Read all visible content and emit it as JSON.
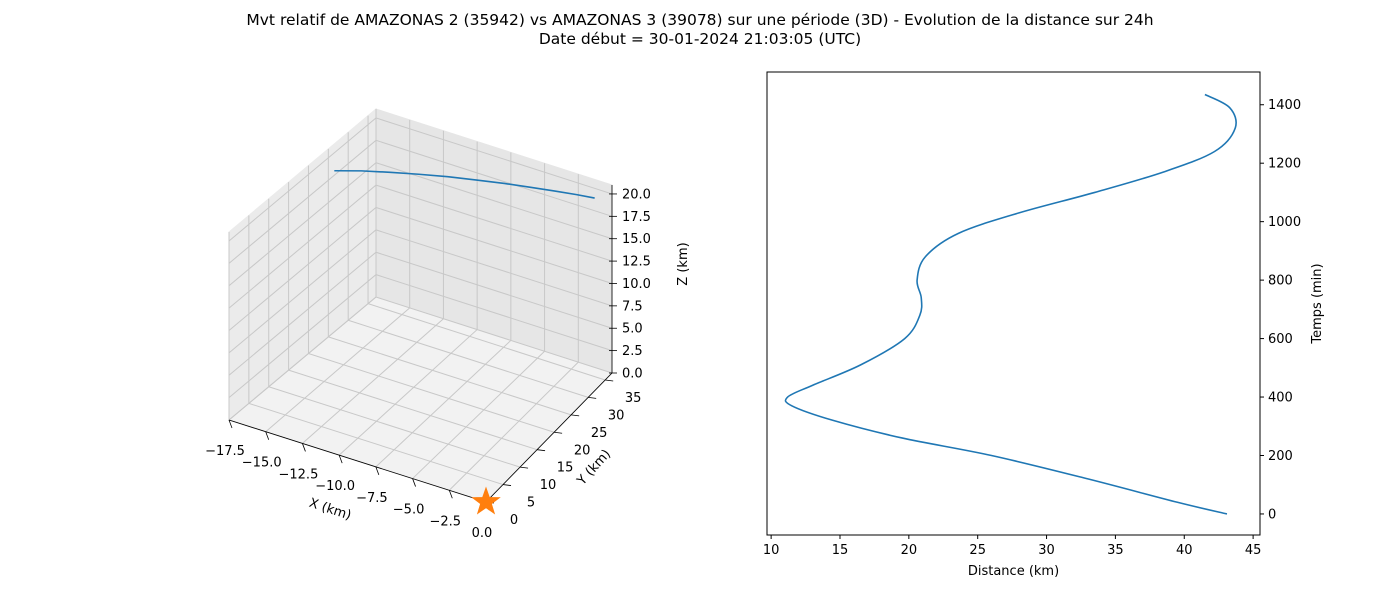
{
  "figure": {
    "title_line1": "Mvt relatif de AMAZONAS 2 (35942) vs AMAZONAS 3 (39078) sur une période (3D) - Evolution de la distance sur 24h",
    "title_line2": "Date début = 30-01-2024 21:03:05 (UTC)"
  },
  "chart_data": [
    {
      "type": "line3d",
      "xlabel": "X (km)",
      "ylabel": "Y (km)",
      "zlabel": "Z (km)",
      "xlim": [
        -17.5,
        0.0
      ],
      "ylim": [
        0,
        37
      ],
      "zlim": [
        0,
        21
      ],
      "x_ticks": [
        "−17.5",
        "−15.0",
        "−12.5",
        "−10.0",
        "−7.5",
        "−5.0",
        "−2.5",
        "0.0"
      ],
      "y_ticks": [
        "0",
        "5",
        "10",
        "15",
        "20",
        "25",
        "30",
        "35"
      ],
      "z_ticks": [
        "0.0",
        "2.5",
        "5.0",
        "7.5",
        "10.0",
        "12.5",
        "15.0",
        "17.5",
        "20.0"
      ],
      "grid": true,
      "series": [
        {
          "color": "#1f77b4",
          "x": [
            -16.5,
            -14.8,
            -13.0,
            -11.2,
            -9.4,
            -7.6,
            -5.9,
            -4.3,
            -2.8,
            -1.6,
            -0.6
          ],
          "y": [
            23.0,
            23.9,
            24.8,
            25.8,
            26.9,
            28.0,
            29.2,
            30.4,
            31.7,
            33.0,
            34.3
          ],
          "z": [
            19.8,
            20.3,
            20.7,
            21.0,
            21.2,
            21.3,
            21.3,
            21.2,
            21.0,
            20.7,
            20.3
          ]
        }
      ],
      "marker": {
        "symbol": "star",
        "color": "#ff7f0e",
        "x": 0.0,
        "y": 0.0,
        "z": 0.0
      }
    },
    {
      "type": "line",
      "xlabel": "Distance (km)",
      "ylabel": "Temps (min)",
      "xlim": [
        9.7,
        45.5
      ],
      "ylim": [
        -72,
        1512
      ],
      "x_ticks": [
        10,
        15,
        20,
        25,
        30,
        35,
        40,
        45
      ],
      "y_ticks": [
        0,
        200,
        400,
        600,
        800,
        1000,
        1200,
        1400
      ],
      "y_axis_side": "right",
      "grid": false,
      "series": [
        {
          "color": "#1f77b4",
          "x": [
            43.1,
            39.5,
            33.0,
            26.0,
            19.5,
            14.5,
            11.5,
            11.2,
            13.0,
            16.5,
            19.7,
            20.8,
            20.9,
            20.6,
            21.2,
            23.6,
            28.0,
            33.5,
            38.5,
            42.2,
            43.7,
            43.3,
            41.5
          ],
          "y": [
            0,
            40,
            120,
            200,
            260,
            320,
            370,
            400,
            440,
            510,
            600,
            680,
            740,
            800,
            880,
            960,
            1030,
            1100,
            1170,
            1240,
            1320,
            1390,
            1435
          ]
        }
      ]
    }
  ]
}
